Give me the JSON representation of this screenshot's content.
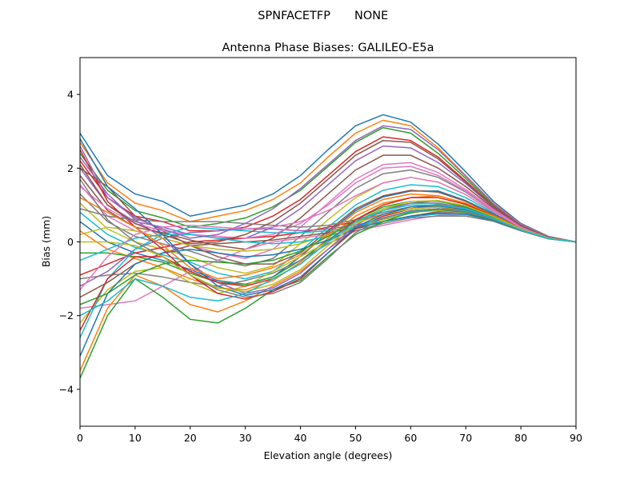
{
  "figure": {
    "suptitle_left": "SPNFACETFP",
    "suptitle_right": "NONE"
  },
  "chart_data": {
    "type": "line",
    "title": "Antenna Phase Biases: GALILEO-E5a",
    "xlabel": "Elevation angle (degrees)",
    "ylabel": "Bias (mm)",
    "xlim": [
      0,
      90
    ],
    "ylim": [
      -5,
      5
    ],
    "xticks": [
      0,
      10,
      20,
      30,
      40,
      50,
      60,
      70,
      80,
      90
    ],
    "yticks": [
      -4,
      -2,
      0,
      2,
      4
    ],
    "grid": false,
    "legend": "none",
    "x": [
      0,
      5,
      10,
      15,
      20,
      25,
      30,
      35,
      40,
      45,
      50,
      55,
      60,
      65,
      70,
      75,
      80,
      85,
      90
    ],
    "colors": [
      "#1f77b4",
      "#ff7f0e",
      "#2ca02c",
      "#d62728",
      "#9467bd",
      "#8c564b",
      "#e377c2",
      "#7f7f7f",
      "#bcbd22",
      "#17becf"
    ],
    "series": [
      {
        "values": [
          2.95,
          1.8,
          1.3,
          1.1,
          0.7,
          0.85,
          1.0,
          1.3,
          1.8,
          2.5,
          3.15,
          3.45,
          3.25,
          2.65,
          1.9,
          1.1,
          0.5,
          0.15,
          0.0
        ]
      },
      {
        "values": [
          2.7,
          1.6,
          1.05,
          0.85,
          0.55,
          0.7,
          0.85,
          1.15,
          1.6,
          2.3,
          2.95,
          3.3,
          3.15,
          2.55,
          1.8,
          1.05,
          0.48,
          0.14,
          0.0
        ]
      },
      {
        "values": [
          2.4,
          1.4,
          0.85,
          0.65,
          0.4,
          0.5,
          0.65,
          0.95,
          1.4,
          2.05,
          2.7,
          3.1,
          2.95,
          2.4,
          1.72,
          1.0,
          0.46,
          0.13,
          0.0
        ]
      },
      {
        "values": [
          2.2,
          1.2,
          0.7,
          0.55,
          0.3,
          0.3,
          0.4,
          0.7,
          1.15,
          1.8,
          2.45,
          2.85,
          2.75,
          2.3,
          1.65,
          0.97,
          0.45,
          0.13,
          0.0
        ]
      },
      {
        "values": [
          2.0,
          1.0,
          0.55,
          0.4,
          0.2,
          0.1,
          0.1,
          0.4,
          0.9,
          1.55,
          2.2,
          2.6,
          2.55,
          2.15,
          1.58,
          0.94,
          0.44,
          0.12,
          0.0
        ]
      },
      {
        "values": [
          1.8,
          0.85,
          0.4,
          0.25,
          0.05,
          -0.1,
          -0.2,
          0.1,
          0.65,
          1.3,
          1.95,
          2.35,
          2.35,
          2.0,
          1.5,
          0.91,
          0.42,
          0.12,
          0.0
        ]
      },
      {
        "values": [
          1.55,
          0.7,
          0.3,
          0.1,
          -0.1,
          -0.3,
          -0.45,
          -0.2,
          0.4,
          1.05,
          1.7,
          2.1,
          2.15,
          1.88,
          1.42,
          0.88,
          0.41,
          0.11,
          0.0
        ]
      },
      {
        "values": [
          1.3,
          0.55,
          0.15,
          -0.05,
          -0.25,
          -0.5,
          -0.65,
          -0.45,
          0.15,
          0.8,
          1.45,
          1.85,
          1.95,
          1.75,
          1.35,
          0.85,
          0.4,
          0.11,
          0.0
        ]
      },
      {
        "values": [
          1.05,
          0.35,
          0.0,
          -0.2,
          -0.4,
          -0.7,
          -0.85,
          -0.65,
          -0.05,
          0.6,
          1.2,
          1.6,
          1.75,
          1.62,
          1.28,
          0.82,
          0.39,
          0.11,
          0.0
        ]
      },
      {
        "values": [
          0.8,
          0.2,
          -0.15,
          -0.35,
          -0.55,
          -0.85,
          -1.0,
          -0.8,
          -0.25,
          0.4,
          1.0,
          1.4,
          1.55,
          1.5,
          1.2,
          0.79,
          0.38,
          0.1,
          0.0
        ]
      },
      {
        "values": [
          0.55,
          0.0,
          -0.3,
          -0.5,
          -0.75,
          -1.05,
          -1.15,
          -0.95,
          -0.4,
          0.25,
          0.85,
          1.22,
          1.38,
          1.38,
          1.12,
          0.76,
          0.37,
          0.1,
          0.0
        ]
      },
      {
        "values": [
          0.3,
          -0.2,
          -0.45,
          -0.7,
          -1.0,
          -1.25,
          -1.3,
          -1.05,
          -0.55,
          0.1,
          0.7,
          1.05,
          1.2,
          1.25,
          1.05,
          0.73,
          0.36,
          0.1,
          0.0
        ]
      },
      {
        "values": [
          -0.3,
          -0.3,
          -0.4,
          -0.55,
          -0.85,
          -1.1,
          -1.15,
          -0.95,
          -0.5,
          0.05,
          0.55,
          0.9,
          1.05,
          1.12,
          0.98,
          0.7,
          0.35,
          0.1,
          0.0
        ]
      },
      {
        "values": [
          -0.9,
          -0.6,
          -0.3,
          -0.15,
          0.0,
          0.05,
          0.1,
          0.15,
          0.25,
          0.4,
          0.55,
          0.75,
          0.9,
          1.0,
          0.92,
          0.67,
          0.34,
          0.09,
          0.0
        ]
      },
      {
        "values": [
          -1.2,
          -0.8,
          -0.2,
          0.1,
          0.25,
          0.3,
          0.35,
          0.35,
          0.3,
          0.35,
          0.45,
          0.62,
          0.78,
          0.9,
          0.86,
          0.64,
          0.33,
          0.09,
          0.0
        ]
      },
      {
        "values": [
          -1.5,
          -1.1,
          -0.6,
          -0.3,
          -0.1,
          -0.05,
          0.0,
          0.05,
          0.15,
          0.25,
          0.38,
          0.55,
          0.7,
          0.82,
          0.8,
          0.61,
          0.32,
          0.09,
          0.0
        ]
      },
      {
        "values": [
          -1.8,
          -1.7,
          -1.6,
          -1.2,
          -0.8,
          -0.5,
          -0.2,
          0.0,
          0.1,
          0.2,
          0.3,
          0.45,
          0.6,
          0.72,
          0.74,
          0.58,
          0.31,
          0.09,
          0.0
        ]
      },
      {
        "values": [
          -1.0,
          -0.9,
          -0.85,
          -0.95,
          -1.1,
          -1.2,
          -1.05,
          -0.85,
          -0.5,
          -0.05,
          0.3,
          0.5,
          0.65,
          0.7,
          0.7,
          0.56,
          0.3,
          0.08,
          0.0
        ]
      },
      {
        "values": [
          -2.2,
          -1.3,
          -0.8,
          -0.7,
          -1.1,
          -1.4,
          -1.2,
          -0.8,
          -0.4,
          0.0,
          0.4,
          0.6,
          0.8,
          0.85,
          0.8,
          0.6,
          0.32,
          0.09,
          0.0
        ]
      },
      {
        "values": [
          -2.6,
          -1.0,
          -0.2,
          0.2,
          0.4,
          0.35,
          0.3,
          0.25,
          0.25,
          0.3,
          0.4,
          0.55,
          0.68,
          0.76,
          0.75,
          0.58,
          0.31,
          0.09,
          0.0
        ]
      },
      {
        "values": [
          -3.1,
          -1.4,
          -0.6,
          -0.3,
          -0.2,
          -0.3,
          -0.4,
          -0.35,
          -0.2,
          0.05,
          0.35,
          0.55,
          0.7,
          0.78,
          0.76,
          0.58,
          0.31,
          0.09,
          0.0
        ]
      },
      {
        "values": [
          -3.5,
          -1.8,
          -0.9,
          -1.2,
          -1.7,
          -1.9,
          -1.6,
          -1.2,
          -0.8,
          -0.2,
          0.35,
          0.7,
          0.9,
          0.95,
          0.85,
          0.62,
          0.33,
          0.09,
          0.0
        ]
      },
      {
        "values": [
          -3.7,
          -2.0,
          -1.0,
          -1.5,
          -2.1,
          -2.2,
          -1.8,
          -1.3,
          -1.05,
          -0.4,
          0.2,
          0.55,
          0.8,
          0.88,
          0.8,
          0.6,
          0.32,
          0.09,
          0.0
        ]
      },
      {
        "values": [
          2.5,
          1.1,
          0.4,
          -0.2,
          -0.9,
          -1.4,
          -1.55,
          -1.35,
          -1.0,
          -0.3,
          0.35,
          0.7,
          0.9,
          0.95,
          0.85,
          0.62,
          0.33,
          0.09,
          0.0
        ]
      },
      {
        "values": [
          2.3,
          1.3,
          0.6,
          0.1,
          -0.6,
          -1.1,
          -1.4,
          -1.25,
          -0.85,
          -0.2,
          0.45,
          0.85,
          1.05,
          1.05,
          0.92,
          0.65,
          0.34,
          0.09,
          0.0
        ]
      },
      {
        "values": [
          2.0,
          1.5,
          0.7,
          0.3,
          -0.1,
          -0.4,
          -0.6,
          -0.6,
          -0.3,
          0.3,
          0.9,
          1.25,
          1.4,
          1.35,
          1.1,
          0.74,
          0.37,
          0.1,
          0.0
        ]
      },
      {
        "values": [
          1.5,
          0.9,
          0.5,
          0.3,
          0.2,
          0.15,
          0.1,
          0.2,
          0.5,
          1.0,
          1.6,
          2.0,
          2.05,
          1.8,
          1.38,
          0.86,
          0.4,
          0.11,
          0.0
        ]
      },
      {
        "values": [
          0.9,
          0.7,
          0.6,
          0.55,
          0.55,
          0.55,
          0.5,
          0.45,
          0.4,
          0.45,
          0.6,
          0.8,
          0.95,
          1.02,
          0.95,
          0.68,
          0.34,
          0.09,
          0.0
        ]
      },
      {
        "values": [
          0.2,
          0.4,
          0.3,
          0.1,
          -0.1,
          -0.2,
          -0.25,
          -0.2,
          -0.05,
          0.2,
          0.5,
          0.75,
          0.9,
          0.95,
          0.88,
          0.64,
          0.33,
          0.09,
          0.0
        ]
      },
      {
        "values": [
          -0.5,
          -0.2,
          0.1,
          0.2,
          0.2,
          0.1,
          0.0,
          -0.05,
          0.0,
          0.15,
          0.4,
          0.65,
          0.82,
          0.9,
          0.84,
          0.62,
          0.32,
          0.09,
          0.0
        ]
      },
      {
        "values": [
          2.8,
          1.5,
          0.9,
          0.2,
          -0.6,
          -1.2,
          -1.45,
          -1.3,
          -0.95,
          -0.3,
          0.4,
          0.75,
          0.95,
          0.98,
          0.88,
          0.63,
          0.33,
          0.09,
          0.0
        ]
      },
      {
        "values": [
          1.2,
          0.8,
          0.4,
          -0.1,
          -0.7,
          -1.0,
          -0.9,
          -0.7,
          -0.35,
          0.2,
          0.8,
          1.15,
          1.3,
          1.25,
          1.05,
          0.72,
          0.36,
          0.1,
          0.0
        ]
      },
      {
        "values": [
          -1.7,
          -1.4,
          -0.9,
          -0.6,
          -0.5,
          -0.55,
          -0.6,
          -0.5,
          -0.25,
          0.15,
          0.6,
          0.95,
          1.1,
          1.1,
          0.95,
          0.67,
          0.34,
          0.09,
          0.0
        ]
      },
      {
        "values": [
          -2.4,
          -1.0,
          -0.4,
          -0.4,
          -0.8,
          -1.1,
          -1.2,
          -1.0,
          -0.6,
          0.0,
          0.6,
          1.0,
          1.2,
          1.2,
          1.02,
          0.7,
          0.35,
          0.1,
          0.0
        ]
      },
      {
        "values": [
          2.6,
          1.2,
          0.65,
          0.35,
          0.1,
          0.2,
          0.5,
          0.9,
          1.45,
          2.1,
          2.75,
          3.15,
          3.05,
          2.5,
          1.78,
          1.03,
          0.47,
          0.13,
          0.0
        ]
      },
      {
        "values": [
          2.1,
          1.0,
          0.5,
          0.2,
          -0.05,
          0.0,
          0.2,
          0.55,
          1.05,
          1.7,
          2.35,
          2.75,
          2.7,
          2.25,
          1.62,
          0.96,
          0.44,
          0.12,
          0.0
        ]
      },
      {
        "values": [
          -1.3,
          -0.4,
          0.2,
          0.4,
          0.45,
          0.4,
          0.35,
          0.4,
          0.55,
          0.85,
          1.25,
          1.6,
          1.75,
          1.62,
          1.28,
          0.82,
          0.39,
          0.11,
          0.0
        ]
      },
      {
        "values": [
          1.7,
          0.6,
          0.0,
          -0.4,
          -0.9,
          -1.3,
          -1.5,
          -1.4,
          -1.1,
          -0.45,
          0.25,
          0.65,
          0.85,
          0.9,
          0.82,
          0.61,
          0.32,
          0.09,
          0.0
        ]
      },
      {
        "values": [
          0.0,
          0.0,
          -0.1,
          -0.4,
          -0.9,
          -1.25,
          -1.35,
          -1.15,
          -0.75,
          -0.1,
          0.5,
          0.9,
          1.1,
          1.12,
          0.98,
          0.69,
          0.35,
          0.1,
          0.0
        ]
      },
      {
        "values": [
          -2.0,
          -1.6,
          -1.0,
          -1.2,
          -1.5,
          -1.6,
          -1.4,
          -1.0,
          -0.6,
          0.0,
          0.55,
          0.85,
          1.0,
          1.0,
          0.9,
          0.64,
          0.33,
          0.09,
          0.0
        ]
      }
    ]
  }
}
